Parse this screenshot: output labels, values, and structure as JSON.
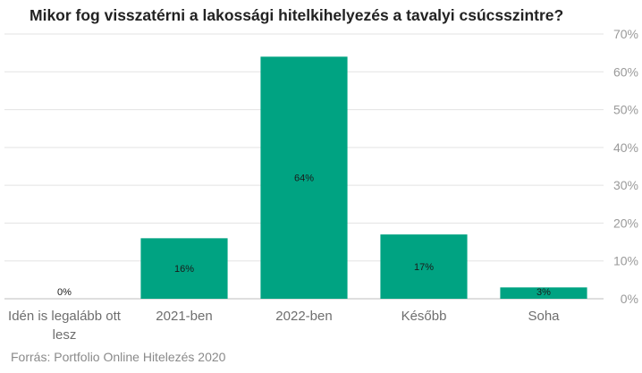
{
  "chart_data": {
    "type": "bar",
    "title": "Mikor fog visszatérni a lakossági hitelkihelyezés a tavalyi csúcsszintre?",
    "categories": [
      [
        "Idén is legalább ott",
        "lesz"
      ],
      [
        "2021-ben"
      ],
      [
        "2022-ben"
      ],
      [
        "Később"
      ],
      [
        "Soha"
      ]
    ],
    "values": [
      0,
      16,
      64,
      17,
      3
    ],
    "value_labels": [
      "0%",
      "16%",
      "64%",
      "17%",
      "3%"
    ],
    "ylim": [
      0,
      70
    ],
    "y_ticks": [
      0,
      10,
      20,
      30,
      40,
      50,
      60,
      70
    ],
    "y_tick_labels": [
      "0%",
      "10%",
      "20%",
      "30%",
      "40%",
      "50%",
      "60%",
      "70%"
    ],
    "y_axis_side": "right",
    "grid": true,
    "bar_color": "#00a382",
    "source": "Forrás: Portfolio Online Hitelezés 2020"
  }
}
